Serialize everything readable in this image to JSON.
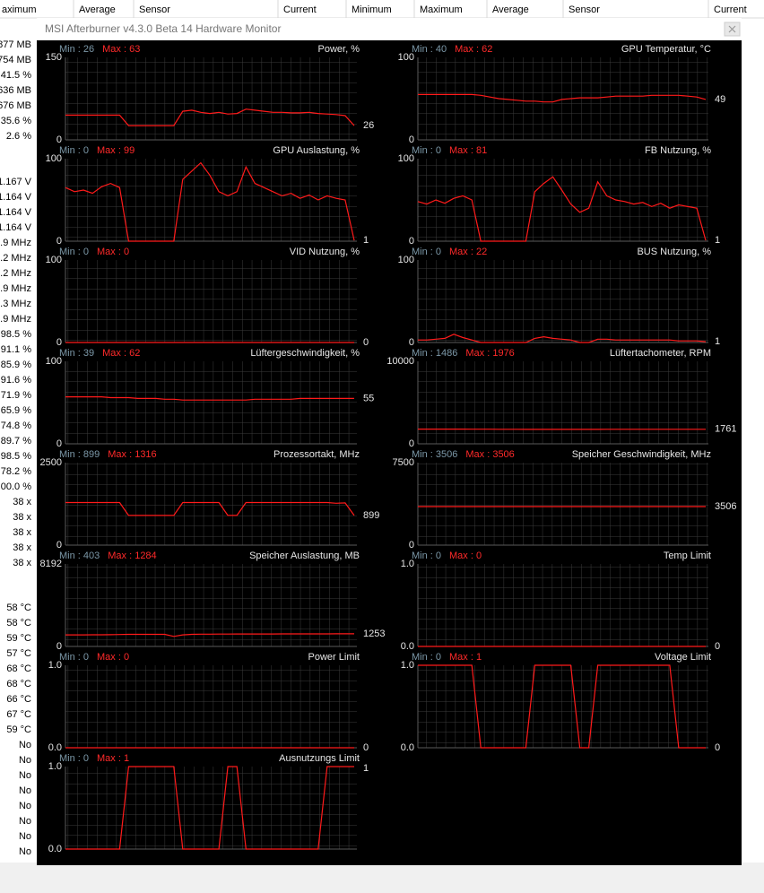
{
  "background": {
    "headers": [
      "aximum",
      "Average",
      "Sensor",
      "Current",
      "Minimum",
      "Maximum",
      "Average",
      "Sensor",
      "Current"
    ],
    "groups": [
      [
        "877 MB",
        "754 MB",
        "41.5 %",
        "636 MB",
        "676 MB",
        "35.6 %",
        "2.6 %"
      ],
      [
        "1.167 V",
        "1.164 V",
        "1.164 V",
        "1.164 V",
        ".9 MHz",
        ".2 MHz",
        ".2 MHz",
        ".9 MHz",
        ".3 MHz",
        ".9 MHz",
        "98.5 %",
        "91.1 %",
        "85.9 %",
        "91.6 %",
        "71.9 %",
        "65.9 %",
        "74.8 %",
        "89.7 %",
        "98.5 %",
        "78.2 %",
        "00.0 %",
        "38 x",
        "38 x",
        "38 x",
        "38 x",
        "38 x"
      ],
      [
        "58 °C",
        "58 °C",
        "59 °C",
        "57 °C",
        "68 °C",
        "68 °C",
        "66 °C",
        "67 °C",
        "59 °C",
        "No",
        "No",
        "No",
        "No",
        "No",
        "No",
        "No",
        "No"
      ]
    ]
  },
  "window": {
    "title": "MSI Afterburner v4.3.0 Beta 14 Hardware Monitor"
  },
  "graphs": {
    "left": [
      {
        "title": "Power, %",
        "min": "Min : 26",
        "max": "Max : 63",
        "ymax": "150",
        "ymin": "0",
        "current": "26",
        "values": [
          45,
          45,
          45,
          45,
          45,
          45,
          45,
          26,
          26,
          26,
          26,
          26,
          26,
          52,
          54,
          50,
          48,
          50,
          47,
          48,
          56,
          54,
          52,
          50,
          50,
          49,
          49,
          50,
          48,
          47,
          46,
          44,
          26
        ]
      },
      {
        "title": "GPU Auslastung, %",
        "min": "Min : 0",
        "max": "Max : 99",
        "ymax": "100",
        "ymin": "0",
        "current": "1",
        "values": [
          65,
          60,
          62,
          58,
          66,
          70,
          65,
          0,
          0,
          0,
          0,
          0,
          0,
          75,
          85,
          95,
          80,
          60,
          55,
          60,
          90,
          70,
          65,
          60,
          55,
          58,
          52,
          56,
          50,
          55,
          52,
          50,
          1
        ]
      },
      {
        "title": "VID Nutzung, %",
        "min": "Min : 0",
        "max": "Max : 0",
        "ymax": "100",
        "ymin": "0",
        "current": "0",
        "values": [
          0,
          0,
          0,
          0,
          0,
          0,
          0,
          0,
          0,
          0,
          0,
          0,
          0,
          0,
          0,
          0,
          0,
          0,
          0,
          0,
          0,
          0,
          0,
          0,
          0,
          0,
          0,
          0,
          0,
          0,
          0,
          0,
          0
        ]
      },
      {
        "title": "Lüftergeschwindigkeit, %",
        "min": "Min : 39",
        "max": "Max : 62",
        "ymax": "100",
        "ymin": "0",
        "current": "55",
        "values": [
          57,
          57,
          57,
          57,
          57,
          56,
          56,
          56,
          55,
          55,
          55,
          54,
          54,
          53,
          53,
          53,
          53,
          53,
          53,
          53,
          53,
          54,
          54,
          54,
          54,
          54,
          55,
          55,
          55,
          55,
          55,
          55,
          55
        ]
      },
      {
        "title": "Prozessortakt, MHz",
        "min": "Min : 899",
        "max": "Max : 1316",
        "ymax": "2500",
        "ymin": "0",
        "current": "899",
        "values": [
          1290,
          1290,
          1290,
          1290,
          1290,
          1290,
          1290,
          899,
          899,
          899,
          899,
          899,
          899,
          1290,
          1290,
          1290,
          1290,
          1290,
          899,
          899,
          1290,
          1290,
          1290,
          1290,
          1290,
          1290,
          1290,
          1290,
          1290,
          1290,
          1270,
          1280,
          899
        ]
      },
      {
        "title": "Speicher Auslastung, MB",
        "min": "Min : 403",
        "max": "Max : 1284",
        "ymax": "8192",
        "ymin": "0",
        "current": "1253",
        "values": [
          1150,
          1150,
          1150,
          1160,
          1160,
          1170,
          1180,
          1200,
          1200,
          1200,
          1200,
          1200,
          1000,
          1150,
          1200,
          1220,
          1220,
          1230,
          1230,
          1240,
          1240,
          1240,
          1240,
          1240,
          1245,
          1245,
          1250,
          1250,
          1250,
          1250,
          1253,
          1253,
          1253
        ]
      },
      {
        "title": "Power Limit",
        "min": "Min : 0",
        "max": "Max : 0",
        "ymax": "1.0",
        "ymin": "0.0",
        "current": "0",
        "values": [
          0,
          0,
          0,
          0,
          0,
          0,
          0,
          0,
          0,
          0,
          0,
          0,
          0,
          0,
          0,
          0,
          0,
          0,
          0,
          0,
          0,
          0,
          0,
          0,
          0,
          0,
          0,
          0,
          0,
          0,
          0,
          0,
          0
        ]
      },
      {
        "title": "Ausnutzungs Limit",
        "min": "Min : 0",
        "max": "Max : 1",
        "ymax": "1.0",
        "ymin": "0.0",
        "current": "1",
        "values": [
          0,
          0,
          0,
          0,
          0,
          0,
          0,
          1,
          1,
          1,
          1,
          1,
          1,
          0,
          0,
          0,
          0,
          0,
          1,
          1,
          0,
          0,
          0,
          0,
          0,
          0,
          0,
          0,
          0,
          1,
          1,
          1,
          1
        ]
      }
    ],
    "right": [
      {
        "title": "GPU Temperatur, °C",
        "min": "Min : 40",
        "max": "Max : 62",
        "ymax": "100",
        "ymin": "0",
        "current": "49",
        "values": [
          55,
          55,
          55,
          55,
          55,
          55,
          55,
          54,
          52,
          50,
          49,
          48,
          47,
          47,
          46,
          46,
          49,
          50,
          51,
          51,
          51,
          52,
          53,
          53,
          53,
          53,
          54,
          54,
          54,
          54,
          53,
          52,
          49
        ]
      },
      {
        "title": "FB Nutzung, %",
        "min": "Min : 0",
        "max": "Max : 81",
        "ymax": "100",
        "ymin": "0",
        "current": "1",
        "values": [
          48,
          45,
          50,
          46,
          52,
          55,
          50,
          0,
          0,
          0,
          0,
          0,
          0,
          60,
          70,
          78,
          62,
          45,
          35,
          40,
          72,
          55,
          50,
          48,
          45,
          47,
          42,
          46,
          40,
          44,
          42,
          40,
          1
        ]
      },
      {
        "title": "BUS Nutzung, %",
        "min": "Min : 0",
        "max": "Max : 22",
        "ymax": "100",
        "ymin": "0",
        "current": "1",
        "values": [
          3,
          3,
          4,
          5,
          10,
          6,
          3,
          0,
          0,
          0,
          0,
          0,
          0,
          5,
          7,
          5,
          4,
          3,
          0,
          0,
          4,
          4,
          3,
          3,
          3,
          3,
          3,
          3,
          3,
          2,
          2,
          2,
          1
        ]
      },
      {
        "title": "Lüftertachometer, RPM",
        "min": "Min : 1486",
        "max": "Max : 1976",
        "ymax": "10000",
        "ymin": "0",
        "current": "1761",
        "values": [
          1780,
          1780,
          1780,
          1780,
          1780,
          1780,
          1775,
          1770,
          1770,
          1765,
          1760,
          1760,
          1755,
          1755,
          1750,
          1750,
          1750,
          1750,
          1750,
          1755,
          1755,
          1760,
          1760,
          1760,
          1760,
          1761,
          1761,
          1761,
          1761,
          1761,
          1761,
          1761,
          1761
        ]
      },
      {
        "title": "Speicher Geschwindigkeit, MHz",
        "min": "Min : 3506",
        "max": "Max : 3506",
        "ymax": "7500",
        "ymin": "0",
        "current": "3506",
        "values": [
          3506,
          3506,
          3506,
          3506,
          3506,
          3506,
          3506,
          3506,
          3506,
          3506,
          3506,
          3506,
          3506,
          3506,
          3506,
          3506,
          3506,
          3506,
          3506,
          3506,
          3506,
          3506,
          3506,
          3506,
          3506,
          3506,
          3506,
          3506,
          3506,
          3506,
          3506,
          3506,
          3506
        ]
      },
      {
        "title": "Temp Limit",
        "min": "Min : 0",
        "max": "Max : 0",
        "ymax": "1.0",
        "ymin": "0.0",
        "current": "0",
        "values": [
          0,
          0,
          0,
          0,
          0,
          0,
          0,
          0,
          0,
          0,
          0,
          0,
          0,
          0,
          0,
          0,
          0,
          0,
          0,
          0,
          0,
          0,
          0,
          0,
          0,
          0,
          0,
          0,
          0,
          0,
          0,
          0,
          0
        ]
      },
      {
        "title": "Voltage Limit",
        "min": "Min : 0",
        "max": "Max : 1",
        "ymax": "1.0",
        "ymin": "0.0",
        "current": "0",
        "values": [
          1,
          1,
          1,
          1,
          1,
          1,
          1,
          0,
          0,
          0,
          0,
          0,
          0,
          1,
          1,
          1,
          1,
          1,
          0,
          0,
          1,
          1,
          1,
          1,
          1,
          1,
          1,
          1,
          1,
          0,
          0,
          0,
          0
        ]
      }
    ]
  }
}
